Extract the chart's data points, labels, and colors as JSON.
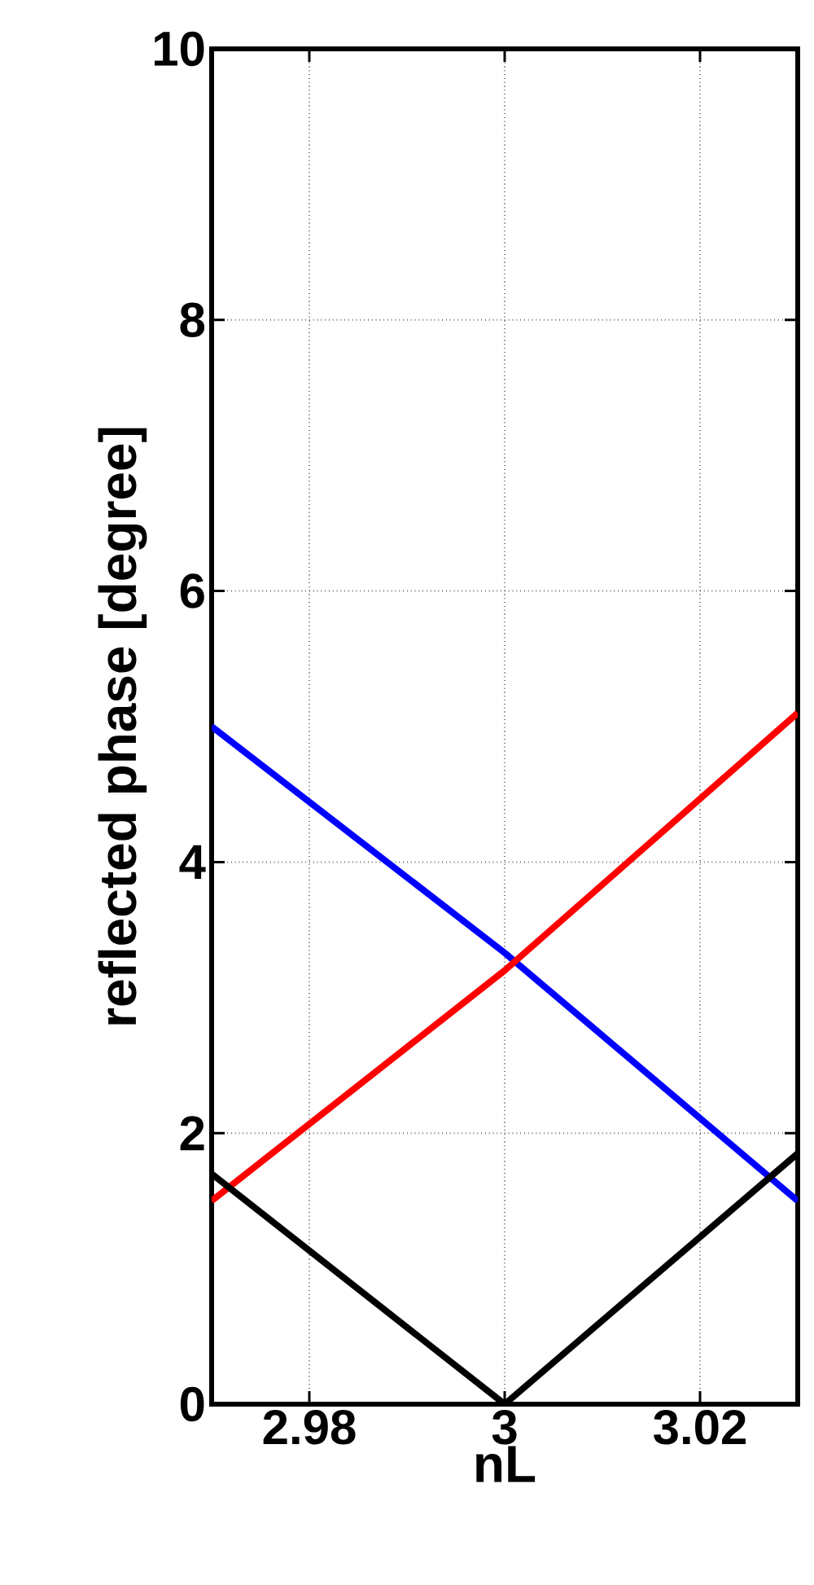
{
  "chart_data": {
    "type": "line",
    "xlabel": "nL",
    "ylabel": "reflected phase [degree]",
    "x": [
      2.97,
      3.0,
      3.03
    ],
    "series": [
      {
        "color": "#0000ff",
        "values": [
          5.0,
          3.33,
          1.5
        ]
      },
      {
        "color": "#ff0000",
        "values": [
          1.5,
          3.2,
          5.1
        ]
      },
      {
        "color": "#000000",
        "values": [
          1.7,
          0.0,
          1.85
        ]
      }
    ],
    "xlim": [
      2.97,
      3.03
    ],
    "ylim": [
      0,
      10
    ],
    "xticks": [
      2.98,
      3,
      3.02
    ],
    "yticks": [
      0,
      2,
      4,
      6,
      8,
      10
    ],
    "grid": true
  }
}
